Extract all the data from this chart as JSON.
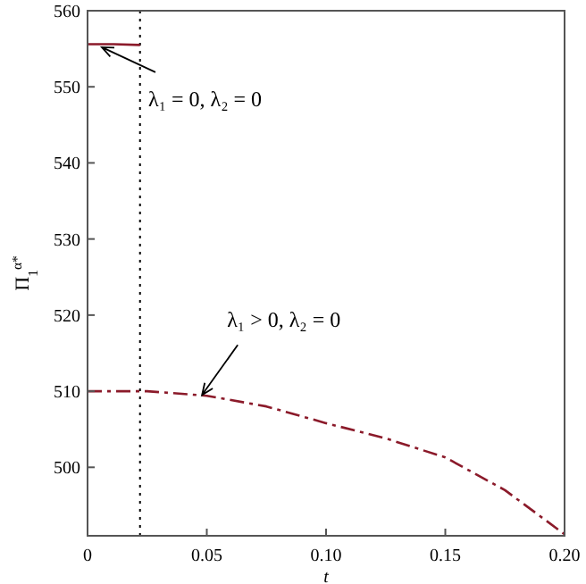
{
  "chart_data": {
    "type": "line",
    "xlabel": "t",
    "ylabel": "Π$_{1}$$^{α*}$",
    "xlim": [
      0,
      0.2
    ],
    "ylim": [
      491,
      560
    ],
    "xticks": [
      0,
      {
        "value": 0.05,
        "label": "0.05"
      },
      {
        "value": 0.1,
        "label": "0.10"
      },
      {
        "value": 0.15,
        "label": "0.15"
      },
      {
        "value": 0.2,
        "label": "0.20"
      }
    ],
    "yticks": [
      500,
      510,
      520,
      530,
      540,
      550,
      560
    ],
    "series": [
      {
        "color": "#8b1a2a",
        "line_style": "solid",
        "x": [
          0,
          0.011,
          0.022
        ],
        "values": [
          555.6,
          555.6,
          555.5
        ]
      },
      {
        "color": "#8b1a2a",
        "line_style": "dashdot",
        "x": [
          0,
          0.025,
          0.05,
          0.075,
          0.1,
          0.125,
          0.15,
          0.175,
          0.2
        ],
        "values": [
          510,
          510,
          509.4,
          508,
          505.8,
          503.8,
          501.3,
          497,
          491.2
        ]
      }
    ],
    "ref_lines": [
      {
        "axis": "x",
        "value": 0.022,
        "line_style": "dotted",
        "color": "#000000"
      }
    ],
    "annotations": [
      {
        "text": "λ₁ = 0, λ₂ = 0",
        "x": 0.006,
        "y": 555.2
      },
      {
        "text": "λ₁ > 0, λ₂ = 0",
        "x": 0.048,
        "y": 509.5
      }
    ],
    "grid": false
  }
}
